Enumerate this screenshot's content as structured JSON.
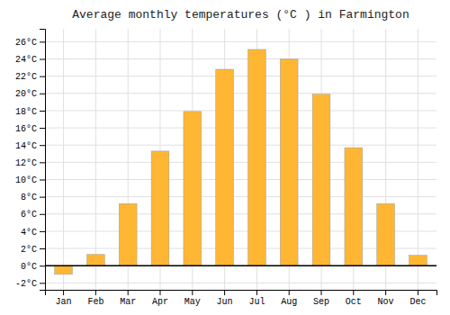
{
  "chart_data": {
    "type": "bar",
    "title": "Average monthly temperatures (°C ) in Farmington",
    "categories": [
      "Jan",
      "Feb",
      "Mar",
      "Apr",
      "May",
      "Jun",
      "Jul",
      "Aug",
      "Sep",
      "Oct",
      "Nov",
      "Dec"
    ],
    "values": [
      -1.0,
      1.3,
      7.2,
      13.3,
      17.9,
      22.8,
      25.1,
      24.0,
      19.9,
      13.7,
      7.2,
      1.2
    ],
    "color": "#FFB733",
    "ylim": [
      -2.8,
      27.5
    ],
    "yticks": [
      {
        "value": -2,
        "label": "-2°C"
      },
      {
        "value": 0,
        "label": "0°C"
      },
      {
        "value": 2,
        "label": "2°C"
      },
      {
        "value": 4,
        "label": "4°C"
      },
      {
        "value": 6,
        "label": "6°C"
      },
      {
        "value": 8,
        "label": "8°C"
      },
      {
        "value": 10,
        "label": "10°C"
      },
      {
        "value": 12,
        "label": "12°C"
      },
      {
        "value": 14,
        "label": "14°C"
      },
      {
        "value": 16,
        "label": "16°C"
      },
      {
        "value": 18,
        "label": "18°C"
      },
      {
        "value": 20,
        "label": "20°C"
      },
      {
        "value": 22,
        "label": "22°C"
      },
      {
        "value": 24,
        "label": "24°C"
      },
      {
        "value": 26,
        "label": "26°C"
      }
    ],
    "grid": true
  }
}
